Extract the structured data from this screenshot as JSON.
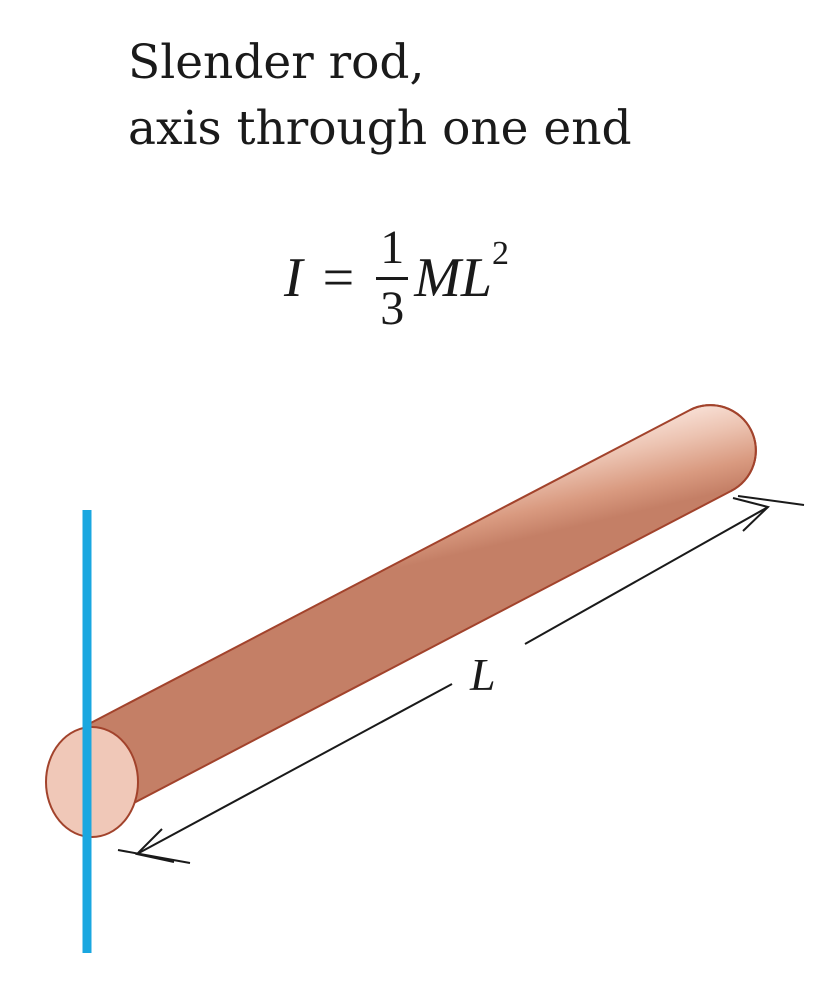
{
  "title": {
    "line1": "Slender rod,",
    "line2": "axis through one end"
  },
  "formula": {
    "lhs": "I",
    "equals": "=",
    "numerator": "1",
    "denominator": "3",
    "variables": "ML",
    "exponent": "2"
  },
  "diagram": {
    "length_label": "L",
    "colors": {
      "axis": "#1aa7e0",
      "rod_body": "#e4b5a3",
      "rod_end": "#f0c8b8",
      "rod_outline": "#a2432c",
      "dimension_line": "#1a1a1a"
    }
  }
}
